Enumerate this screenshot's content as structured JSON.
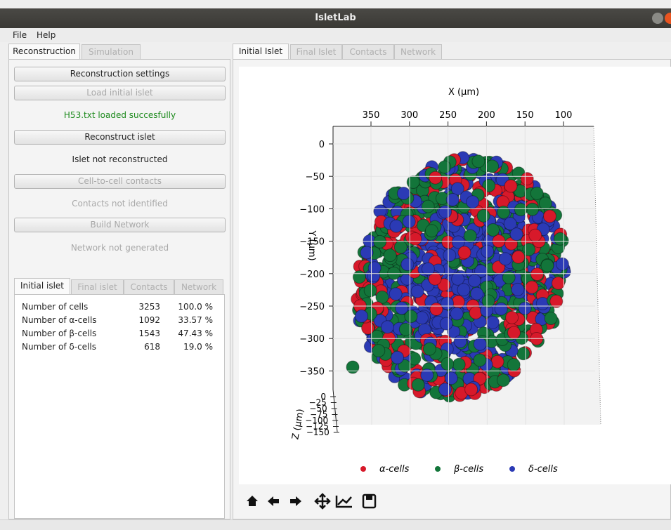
{
  "window": {
    "title": "IsletLab"
  },
  "menu": [
    "File",
    "Help"
  ],
  "left_panel": {
    "tabs": [
      "Reconstruction",
      "Simulation"
    ],
    "buttons": [
      "Reconstruction settings",
      "Load initial islet",
      "Reconstruct islet",
      "Cell-to-cell contacts",
      "Build Network"
    ],
    "statuses": [
      "H53.txt loaded succesfully",
      "Islet not reconstructed",
      "Contacts not identified",
      "Network not generated"
    ],
    "sub_tabs": [
      "Initial islet",
      "Final islet",
      "Contacts",
      "Network"
    ],
    "table": {
      "rows": [
        [
          "Number of cells",
          "3253",
          "100.0 %"
        ],
        [
          "Number of α-cells",
          "1092",
          "33.57 %"
        ],
        [
          "Number of β-cells",
          "1543",
          "47.43 %"
        ],
        [
          "Number of δ-cells",
          "618",
          "19.0 %"
        ]
      ]
    }
  },
  "right_panel": {
    "tabs": [
      "Initial Islet",
      "Final Islet",
      "Contacts",
      "Network"
    ],
    "plot": {
      "x_label": "X (μm)",
      "y_label": "Y (μm)",
      "z_label": "Z (μm)",
      "xticks": [
        "350",
        "300",
        "250",
        "200",
        "150",
        "100"
      ],
      "yticks": [
        "0",
        "−50",
        "−100",
        "−150",
        "−200",
        "−250",
        "−300",
        "−350"
      ],
      "zticks": [
        "0",
        "−25",
        "−50",
        "−75",
        "−100",
        "−125",
        "−150"
      ],
      "legend": [
        {
          "name": "α-cells",
          "color": "#d7192a"
        },
        {
          "name": "β-cells",
          "color": "#13753a"
        },
        {
          "name": "δ-cells",
          "color": "#2b3ab5"
        }
      ]
    }
  }
}
